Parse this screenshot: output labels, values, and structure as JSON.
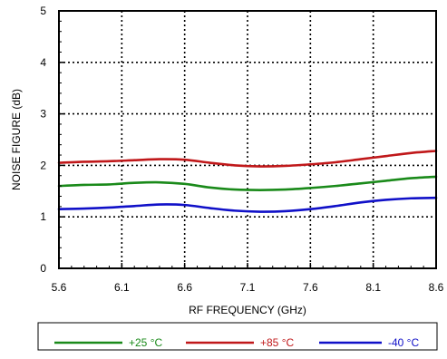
{
  "chart_data": {
    "type": "line",
    "title": "",
    "xlabel": "RF FREQUENCY (GHz)",
    "ylabel": "NOISE FIGURE (dB)",
    "xlim": [
      5.6,
      8.6
    ],
    "ylim": [
      0,
      5
    ],
    "xticks": [
      5.6,
      6.1,
      6.6,
      7.1,
      7.6,
      8.1,
      8.6
    ],
    "xtick_labels": [
      "5.6",
      "6.1",
      "6.6",
      "7.1",
      "7.6",
      "8.1",
      "8.6"
    ],
    "yticks": [
      0,
      1,
      2,
      3,
      4,
      5
    ],
    "ytick_labels": [
      "0",
      "1",
      "2",
      "3",
      "4",
      "5"
    ],
    "grid": "dotted",
    "legend_position": "bottom",
    "series": [
      {
        "name": "+25 °C",
        "color": "#1a8a1a",
        "x": [
          5.6,
          5.8,
          6.0,
          6.2,
          6.4,
          6.6,
          6.8,
          7.0,
          7.2,
          7.4,
          7.6,
          7.8,
          8.0,
          8.2,
          8.4,
          8.6
        ],
        "y": [
          1.6,
          1.62,
          1.63,
          1.66,
          1.67,
          1.64,
          1.57,
          1.53,
          1.52,
          1.53,
          1.56,
          1.6,
          1.65,
          1.7,
          1.75,
          1.78
        ]
      },
      {
        "name": "+85 °C",
        "color": "#c0181a",
        "x": [
          5.6,
          5.8,
          6.0,
          6.2,
          6.4,
          6.6,
          6.8,
          7.0,
          7.2,
          7.4,
          7.6,
          7.8,
          8.0,
          8.2,
          8.4,
          8.6
        ],
        "y": [
          2.05,
          2.07,
          2.08,
          2.1,
          2.12,
          2.11,
          2.05,
          2.0,
          1.98,
          1.99,
          2.02,
          2.06,
          2.12,
          2.18,
          2.24,
          2.28
        ]
      },
      {
        "name": "-40 °C",
        "color": "#1010c8",
        "x": [
          5.6,
          5.8,
          6.0,
          6.2,
          6.4,
          6.6,
          6.8,
          7.0,
          7.2,
          7.4,
          7.6,
          7.8,
          8.0,
          8.2,
          8.4,
          8.6
        ],
        "y": [
          1.15,
          1.16,
          1.18,
          1.21,
          1.24,
          1.23,
          1.17,
          1.12,
          1.1,
          1.11,
          1.15,
          1.21,
          1.28,
          1.33,
          1.36,
          1.37
        ]
      }
    ]
  }
}
